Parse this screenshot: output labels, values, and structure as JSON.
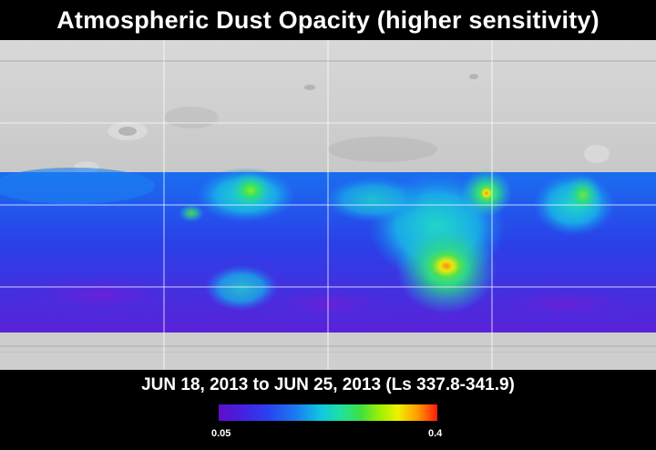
{
  "title": "Atmospheric Dust Opacity (higher sensitivity)",
  "date_range": "JUN 18, 2013 to JUN 25, 2013 (Ls 337.8-341.9)",
  "colorbar": {
    "min_label": "0.05",
    "max_label": "0.4",
    "min_value": 0.05,
    "max_value": 0.4,
    "colors": [
      "#5a10c8",
      "#2a3ff0",
      "#10c8e0",
      "#40e040",
      "#f0f000",
      "#ff1a10"
    ]
  },
  "colors": {
    "background": "#000000",
    "terrain": "#c8c8c8",
    "grid": "#ffffff"
  }
}
